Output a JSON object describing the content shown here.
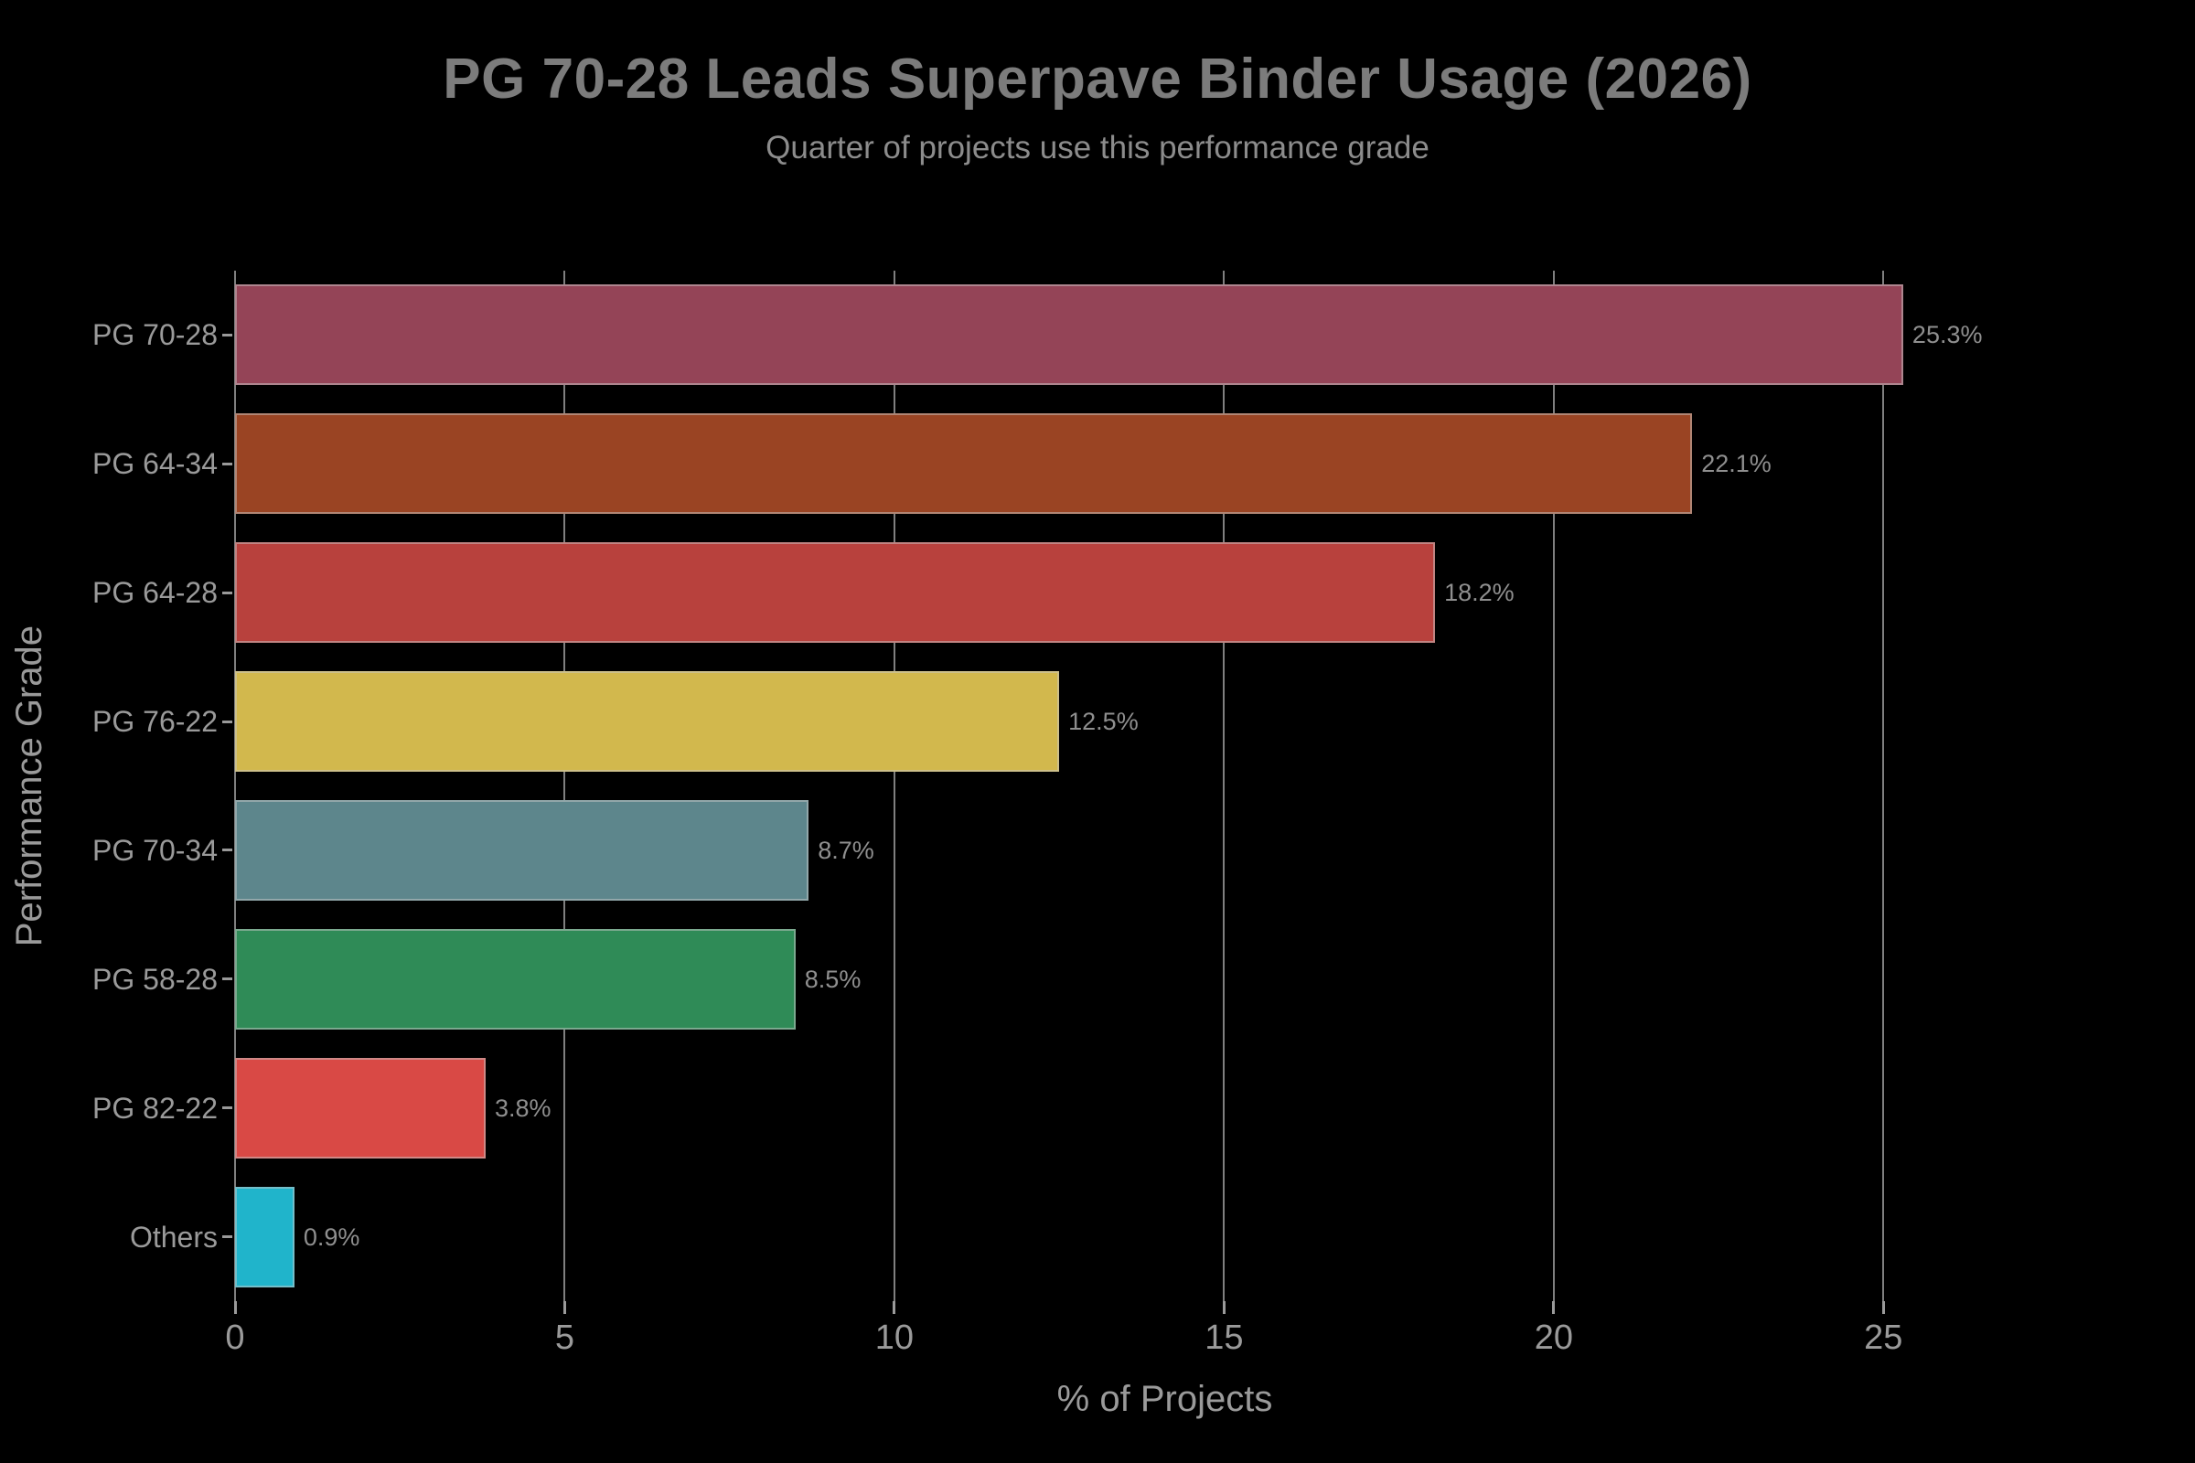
{
  "page": {
    "background": "#000000"
  },
  "chart_data": {
    "type": "bar",
    "orientation": "horizontal",
    "title": "PG 70-28 Leads Superpave Binder Usage (2026)",
    "subtitle": "Quarter of projects use this performance grade",
    "xlabel": "% of Projects",
    "ylabel": "Performance Grade",
    "categories": [
      "PG 70-28",
      "PG 64-34",
      "PG 64-28",
      "PG 76-22",
      "PG 70-34",
      "PG 58-28",
      "PG 82-22",
      "Others"
    ],
    "values": [
      25.3,
      22.1,
      18.2,
      12.5,
      8.7,
      8.5,
      3.8,
      0.9
    ],
    "value_labels": [
      "25.3%",
      "22.1%",
      "18.2%",
      "12.5%",
      "8.7%",
      "8.5%",
      "3.8%",
      "0.9%"
    ],
    "bar_colors": [
      "#944457",
      "#9a4423",
      "#b8413d",
      "#d2b84d",
      "#5d868c",
      "#2f8b57",
      "#d94945",
      "#20b4cb"
    ],
    "x_ticks": [
      0,
      5,
      10,
      15,
      20,
      25
    ],
    "xlim": [
      0,
      28.2
    ],
    "grid": "vertical-gridlines-behind-bars",
    "legend": "none",
    "style": {
      "background": "#000000",
      "title_color": "#7c7c7c",
      "subtitle_color": "#8c8c8c",
      "tick_label_color": "#9a9a9a",
      "axis_label_color": "#9a9a9a",
      "value_label_color": "#8f8f8f",
      "gridline_color": "#7f7f7f",
      "tick_mark_color": "#9a9a9a",
      "bar_edge_color": "rgba(200,200,200,0.5)"
    }
  }
}
